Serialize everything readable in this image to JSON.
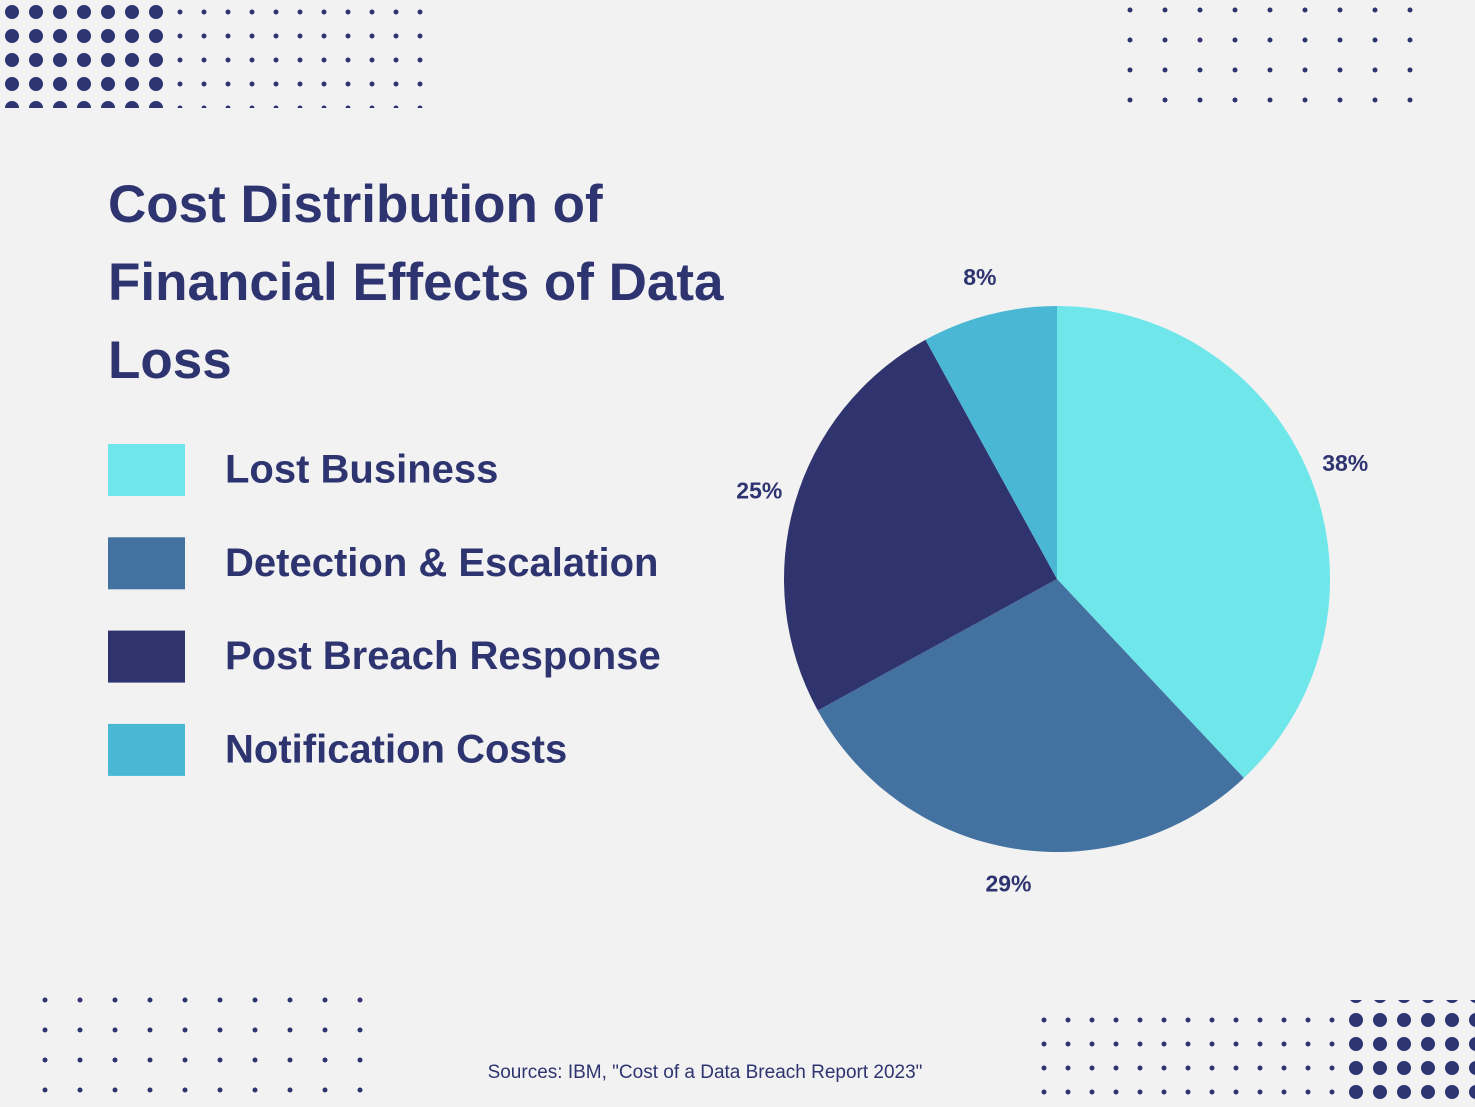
{
  "chart_data": {
    "type": "pie",
    "title": "Cost Distribution of Financial Effects of Data Loss",
    "categories": [
      "Lost Business",
      "Detection & Escalation",
      "Post Breach Response",
      "Notification Costs"
    ],
    "values": [
      38,
      29,
      25,
      8
    ],
    "value_labels": [
      "38%",
      "29%",
      "25%",
      "8%"
    ],
    "colors": [
      "#6ee6ea",
      "#4472a0",
      "#30346e",
      "#4ab8d4"
    ],
    "source": "Sources: IBM, \"Cost of a Data Breach Report 2023\""
  }
}
